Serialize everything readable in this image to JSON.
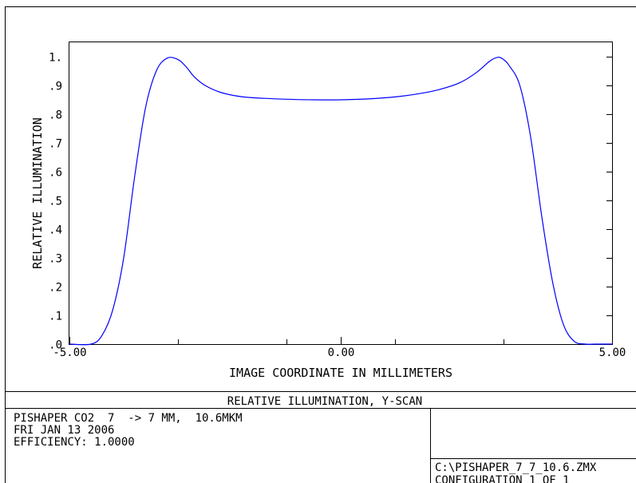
{
  "chart_data": {
    "type": "line",
    "title": "RELATIVE ILLUMINATION, Y-SCAN",
    "xlabel": "IMAGE COORDINATE IN MILLIMETERS",
    "ylabel": "RELATIVE ILLUMINATION",
    "xlim": [
      -5.0,
      5.0
    ],
    "ylim": [
      0.0,
      1.05
    ],
    "x_tick_labels": [
      "-5.00",
      "0.00",
      "5.00"
    ],
    "x_tick_values": [
      -5.0,
      0.0,
      5.0
    ],
    "x_minor_ticks": [
      -3.0,
      -1.0,
      1.0,
      3.0
    ],
    "y_tick_labels": [
      ".0",
      ".1",
      ".2",
      ".3",
      ".4",
      ".5",
      ".6",
      ".7",
      ".8",
      ".9",
      "1."
    ],
    "y_tick_values": [
      0.0,
      0.1,
      0.2,
      0.3,
      0.4,
      0.5,
      0.6,
      0.7,
      0.8,
      0.9,
      1.0
    ],
    "grid": false,
    "line_color": "#0000ff",
    "series": [
      {
        "x": [
          -5.0,
          -4.6,
          -4.4,
          -4.2,
          -4.0,
          -3.8,
          -3.6,
          -3.4,
          -3.2,
          -3.0,
          -2.85,
          -2.7,
          -2.5,
          -2.2,
          -1.8,
          -1.4,
          -1.0,
          -0.5,
          0.0,
          0.5,
          1.0,
          1.4,
          1.8,
          2.2,
          2.5,
          2.75,
          2.9,
          3.0,
          3.1,
          3.3,
          3.5,
          3.7,
          3.9,
          4.1,
          4.3,
          4.5,
          4.7,
          5.0
        ],
        "y": [
          0.0,
          0.0,
          0.03,
          0.12,
          0.3,
          0.58,
          0.82,
          0.95,
          0.995,
          0.99,
          0.965,
          0.93,
          0.9,
          0.875,
          0.86,
          0.855,
          0.852,
          0.85,
          0.85,
          0.853,
          0.86,
          0.87,
          0.885,
          0.91,
          0.945,
          0.985,
          0.998,
          0.99,
          0.97,
          0.9,
          0.72,
          0.45,
          0.22,
          0.07,
          0.01,
          0.0,
          0.0,
          0.0
        ]
      }
    ]
  },
  "info": {
    "lens_line": "PISHAPER CO2  7  -> 7 MM,  10.6MKM",
    "date_line": "FRI JAN 13 2006",
    "efficiency_line": "EFFICIENCY: 1.0000",
    "file_line": "C:\\PISHAPER_7_7_10.6.ZMX",
    "config_line": "CONFIGURATION 1 OF 1"
  }
}
